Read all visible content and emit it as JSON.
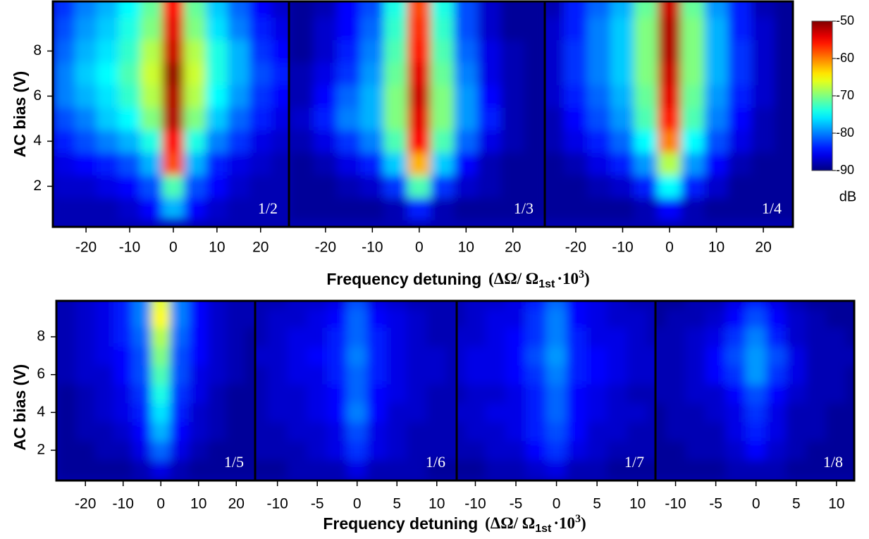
{
  "chart_data": [
    {
      "type": "heatmap",
      "panel_label": "1/2",
      "ylabel": "AC bias (V)",
      "xlim": [
        -27.6,
        26.5
      ],
      "xticks": [
        -20,
        -10,
        0,
        10,
        20
      ],
      "ylim": [
        0.2,
        10.2
      ],
      "yticks": [
        2,
        4,
        6,
        8
      ],
      "x": [
        -25,
        -20,
        -15,
        -10,
        -5,
        0,
        5,
        10,
        15,
        20,
        25
      ],
      "y": [
        1,
        2,
        3,
        4,
        5,
        6,
        7,
        8,
        9,
        10
      ],
      "values": [
        [
          -88,
          -88,
          -88,
          -87,
          -85,
          -78,
          -85,
          -87,
          -88,
          -88,
          -88
        ],
        [
          -87,
          -87,
          -86,
          -85,
          -82,
          -72,
          -82,
          -85,
          -87,
          -88,
          -88
        ],
        [
          -86,
          -85,
          -84,
          -82,
          -78,
          -58,
          -78,
          -84,
          -86,
          -87,
          -88
        ],
        [
          -84,
          -82,
          -80,
          -78,
          -74,
          -55,
          -74,
          -80,
          -83,
          -86,
          -87
        ],
        [
          -82,
          -80,
          -77,
          -75,
          -70,
          -52,
          -70,
          -77,
          -81,
          -84,
          -86
        ],
        [
          -80,
          -78,
          -76,
          -73,
          -68,
          -52,
          -68,
          -75,
          -79,
          -83,
          -85
        ],
        [
          -80,
          -77,
          -75,
          -72,
          -67,
          -51,
          -67,
          -74,
          -78,
          -82,
          -84
        ],
        [
          -81,
          -78,
          -76,
          -73,
          -68,
          -53,
          -68,
          -74,
          -78,
          -83,
          -85
        ],
        [
          -82,
          -79,
          -77,
          -74,
          -70,
          -54,
          -70,
          -76,
          -80,
          -84,
          -86
        ],
        [
          -83,
          -80,
          -78,
          -75,
          -71,
          -55,
          -71,
          -77,
          -81,
          -85,
          -87
        ]
      ]
    },
    {
      "type": "heatmap",
      "panel_label": "1/3",
      "xlabel": {
        "text": "Frequency detuning",
        "expr": "(ΔΩ/ Ω",
        "sub": "1st",
        "expr2": "·10",
        "sup": "3",
        "close": ")"
      },
      "xlim": [
        -27.8,
        26.8
      ],
      "xticks": [
        -20,
        -10,
        0,
        10,
        20
      ],
      "ylim": [
        0.2,
        10.2
      ],
      "x": [
        -25,
        -20,
        -15,
        -10,
        -5,
        0,
        5,
        10,
        15,
        20,
        25
      ],
      "y": [
        1,
        2,
        3,
        4,
        5,
        6,
        7,
        8,
        9,
        10
      ],
      "values": [
        [
          -89,
          -89,
          -89,
          -89,
          -88,
          -84,
          -88,
          -89,
          -89,
          -89,
          -89
        ],
        [
          -89,
          -89,
          -88,
          -87,
          -83,
          -72,
          -83,
          -87,
          -88,
          -89,
          -89
        ],
        [
          -89,
          -88,
          -86,
          -84,
          -77,
          -62,
          -77,
          -85,
          -88,
          -89,
          -89
        ],
        [
          -88,
          -86,
          -83,
          -80,
          -72,
          -55,
          -72,
          -81,
          -86,
          -88,
          -89
        ],
        [
          -87,
          -84,
          -80,
          -78,
          -70,
          -54,
          -70,
          -79,
          -84,
          -88,
          -89
        ],
        [
          -88,
          -85,
          -81,
          -78,
          -70,
          -53,
          -70,
          -79,
          -85,
          -88,
          -89
        ],
        [
          -88,
          -86,
          -83,
          -79,
          -71,
          -54,
          -71,
          -80,
          -86,
          -88,
          -89
        ],
        [
          -89,
          -87,
          -84,
          -80,
          -72,
          -56,
          -72,
          -81,
          -86,
          -88,
          -89
        ],
        [
          -89,
          -87,
          -85,
          -81,
          -73,
          -57,
          -73,
          -82,
          -87,
          -89,
          -89
        ],
        [
          -89,
          -88,
          -85,
          -82,
          -74,
          -58,
          -74,
          -82,
          -87,
          -89,
          -89
        ]
      ]
    },
    {
      "type": "heatmap",
      "panel_label": "1/4",
      "xlim": [
        -26.6,
        26.3
      ],
      "xticks": [
        -20,
        -10,
        0,
        10,
        20
      ],
      "ylim": [
        0.2,
        10.2
      ],
      "x": [
        -25,
        -20,
        -15,
        -10,
        -5,
        0,
        5,
        10,
        15,
        20,
        25
      ],
      "y": [
        1,
        2,
        3,
        4,
        5,
        6,
        7,
        8,
        9,
        10
      ],
      "values": [
        [
          -89,
          -89,
          -89,
          -89,
          -88,
          -85,
          -88,
          -89,
          -89,
          -89,
          -89
        ],
        [
          -89,
          -89,
          -88,
          -87,
          -84,
          -75,
          -84,
          -87,
          -89,
          -89,
          -89
        ],
        [
          -89,
          -88,
          -86,
          -84,
          -79,
          -68,
          -79,
          -85,
          -88,
          -89,
          -89
        ],
        [
          -88,
          -86,
          -84,
          -81,
          -75,
          -60,
          -75,
          -82,
          -86,
          -88,
          -89
        ],
        [
          -88,
          -85,
          -82,
          -79,
          -72,
          -56,
          -72,
          -80,
          -85,
          -88,
          -89
        ],
        [
          -87,
          -84,
          -81,
          -78,
          -71,
          -54,
          -71,
          -79,
          -84,
          -87,
          -89
        ],
        [
          -87,
          -83,
          -80,
          -77,
          -70,
          -53,
          -70,
          -78,
          -83,
          -87,
          -89
        ],
        [
          -87,
          -83,
          -80,
          -77,
          -70,
          -52,
          -70,
          -78,
          -83,
          -87,
          -89
        ],
        [
          -87,
          -84,
          -80,
          -77,
          -70,
          -52,
          -70,
          -78,
          -84,
          -87,
          -89
        ],
        [
          -88,
          -84,
          -81,
          -78,
          -71,
          -53,
          -71,
          -79,
          -84,
          -88,
          -89
        ]
      ]
    },
    {
      "type": "heatmap",
      "panel_label": "1/5",
      "ylabel": "AC bias (V)",
      "xlim": [
        -27.7,
        25
      ],
      "xticks": [
        -20,
        -10,
        0,
        10,
        20
      ],
      "ylim": [
        0.4,
        9.9
      ],
      "yticks": [
        2,
        4,
        6,
        8
      ],
      "x": [
        -25,
        -20,
        -15,
        -10,
        -5,
        0,
        5,
        10,
        15,
        20,
        25
      ],
      "y": [
        1,
        2,
        3,
        4,
        5,
        6,
        7,
        8,
        9,
        10
      ],
      "values": [
        [
          -89,
          -89,
          -89,
          -89,
          -88,
          -86,
          -88,
          -89,
          -89,
          -89,
          -89
        ],
        [
          -89,
          -89,
          -88,
          -88,
          -86,
          -81,
          -86,
          -88,
          -89,
          -89,
          -89
        ],
        [
          -89,
          -88,
          -88,
          -87,
          -85,
          -78,
          -85,
          -87,
          -88,
          -89,
          -89
        ],
        [
          -89,
          -88,
          -87,
          -86,
          -84,
          -76,
          -84,
          -87,
          -88,
          -89,
          -89
        ],
        [
          -89,
          -88,
          -87,
          -86,
          -83,
          -74,
          -83,
          -86,
          -88,
          -89,
          -89
        ],
        [
          -88,
          -87,
          -87,
          -85,
          -82,
          -72,
          -82,
          -86,
          -87,
          -88,
          -89
        ],
        [
          -88,
          -87,
          -86,
          -85,
          -82,
          -70,
          -82,
          -85,
          -87,
          -88,
          -89
        ],
        [
          -88,
          -87,
          -86,
          -84,
          -81,
          -68,
          -81,
          -85,
          -87,
          -88,
          -89
        ],
        [
          -88,
          -87,
          -86,
          -84,
          -80,
          -65,
          -80,
          -85,
          -87,
          -88,
          -88
        ],
        [
          -88,
          -87,
          -86,
          -84,
          -80,
          -66,
          -80,
          -85,
          -87,
          -88,
          -88
        ]
      ]
    },
    {
      "type": "heatmap",
      "panel_label": "1/6",
      "xlim": [
        -12.8,
        12.5
      ],
      "xticks": [
        -10,
        -5,
        0,
        5,
        10
      ],
      "ylim": [
        0.4,
        9.9
      ],
      "x": [
        -12.5,
        -10,
        -7.5,
        -5,
        -2.5,
        0,
        2.5,
        5,
        7.5,
        10,
        12.5
      ],
      "y": [
        1,
        2,
        3,
        4,
        5,
        6,
        7,
        8,
        9,
        10
      ],
      "values": [
        [
          -89,
          -89,
          -88,
          -88,
          -88,
          -86,
          -88,
          -88,
          -88,
          -89,
          -89
        ],
        [
          -88,
          -88,
          -88,
          -87,
          -86,
          -83,
          -86,
          -87,
          -88,
          -88,
          -88
        ],
        [
          -88,
          -88,
          -87,
          -87,
          -86,
          -82,
          -86,
          -87,
          -88,
          -88,
          -88
        ],
        [
          -88,
          -87,
          -87,
          -86,
          -85,
          -80,
          -85,
          -87,
          -87,
          -88,
          -88
        ],
        [
          -88,
          -87,
          -87,
          -86,
          -85,
          -81,
          -85,
          -86,
          -87,
          -88,
          -88
        ],
        [
          -88,
          -87,
          -86,
          -86,
          -84,
          -81,
          -84,
          -86,
          -87,
          -87,
          -88
        ],
        [
          -87,
          -87,
          -86,
          -85,
          -84,
          -80,
          -84,
          -86,
          -87,
          -87,
          -88
        ],
        [
          -88,
          -87,
          -86,
          -86,
          -84,
          -81,
          -84,
          -86,
          -87,
          -88,
          -88
        ],
        [
          -88,
          -87,
          -87,
          -86,
          -85,
          -81,
          -85,
          -86,
          -87,
          -88,
          -88
        ],
        [
          -88,
          -88,
          -87,
          -87,
          -86,
          -82,
          -86,
          -87,
          -88,
          -88,
          -88
        ]
      ]
    },
    {
      "type": "heatmap",
      "panel_label": "1/7",
      "xlabel": {
        "text": "Frequency detuning",
        "expr": "(ΔΩ/ Ω",
        "sub": "1st",
        "expr2": "·10",
        "sup": "3",
        "close": ")"
      },
      "xlim": [
        -12.3,
        12.2
      ],
      "xticks": [
        -10,
        -5,
        0,
        5,
        10
      ],
      "ylim": [
        0.4,
        9.9
      ],
      "x": [
        -12.5,
        -10,
        -7.5,
        -5,
        -2.5,
        0,
        2.5,
        5,
        7.5,
        10,
        12.5
      ],
      "y": [
        1,
        2,
        3,
        4,
        5,
        6,
        7,
        8,
        9,
        10
      ],
      "values": [
        [
          -89,
          -89,
          -88,
          -88,
          -87,
          -86,
          -88,
          -88,
          -89,
          -89,
          -89
        ],
        [
          -88,
          -88,
          -87,
          -87,
          -85,
          -83,
          -86,
          -87,
          -88,
          -88,
          -88
        ],
        [
          -88,
          -87,
          -87,
          -86,
          -84,
          -82,
          -85,
          -87,
          -87,
          -88,
          -88
        ],
        [
          -87,
          -87,
          -86,
          -86,
          -84,
          -81,
          -85,
          -86,
          -87,
          -87,
          -88
        ],
        [
          -88,
          -87,
          -87,
          -86,
          -84,
          -81,
          -85,
          -86,
          -87,
          -88,
          -88
        ],
        [
          -87,
          -86,
          -86,
          -85,
          -83,
          -80,
          -84,
          -85,
          -86,
          -87,
          -87
        ],
        [
          -87,
          -86,
          -86,
          -85,
          -82,
          -79,
          -84,
          -85,
          -86,
          -87,
          -87
        ],
        [
          -87,
          -87,
          -86,
          -85,
          -83,
          -80,
          -84,
          -86,
          -86,
          -87,
          -88
        ],
        [
          -88,
          -87,
          -86,
          -86,
          -83,
          -80,
          -85,
          -86,
          -87,
          -87,
          -88
        ],
        [
          -88,
          -87,
          -87,
          -86,
          -84,
          -81,
          -85,
          -86,
          -87,
          -88,
          -88
        ]
      ]
    },
    {
      "type": "heatmap",
      "panel_label": "1/8",
      "xlim": [
        -12.5,
        12.2
      ],
      "xticks": [
        -10,
        -5,
        0,
        5,
        10
      ],
      "ylim": [
        0.4,
        9.9
      ],
      "x": [
        -12.5,
        -10,
        -7.5,
        -5,
        -2.5,
        0,
        2.5,
        5,
        7.5,
        10,
        12.5
      ],
      "y": [
        1,
        2,
        3,
        4,
        5,
        6,
        7,
        8,
        9,
        10
      ],
      "values": [
        [
          -89,
          -89,
          -89,
          -89,
          -88,
          -88,
          -88,
          -89,
          -89,
          -89,
          -89
        ],
        [
          -89,
          -89,
          -88,
          -88,
          -87,
          -85,
          -87,
          -88,
          -89,
          -89,
          -89
        ],
        [
          -89,
          -88,
          -88,
          -88,
          -86,
          -84,
          -86,
          -88,
          -88,
          -89,
          -89
        ],
        [
          -89,
          -88,
          -88,
          -87,
          -86,
          -83,
          -86,
          -88,
          -88,
          -89,
          -89
        ],
        [
          -88,
          -88,
          -87,
          -87,
          -85,
          -82,
          -85,
          -87,
          -88,
          -88,
          -89
        ],
        [
          -88,
          -88,
          -87,
          -85,
          -83,
          -79,
          -83,
          -86,
          -88,
          -88,
          -89
        ],
        [
          -88,
          -88,
          -87,
          -85,
          -82,
          -79,
          -82,
          -86,
          -88,
          -88,
          -88
        ],
        [
          -88,
          -88,
          -87,
          -86,
          -83,
          -80,
          -84,
          -87,
          -88,
          -88,
          -89
        ],
        [
          -89,
          -88,
          -88,
          -87,
          -85,
          -82,
          -85,
          -87,
          -88,
          -89,
          -89
        ],
        [
          -89,
          -89,
          -88,
          -88,
          -86,
          -84,
          -86,
          -88,
          -89,
          -89,
          -89
        ]
      ]
    }
  ],
  "colorbar": {
    "label": "dB",
    "zlim": [
      -90,
      -50
    ],
    "zticks": [
      -50,
      -60,
      -70,
      -80,
      -90
    ]
  }
}
